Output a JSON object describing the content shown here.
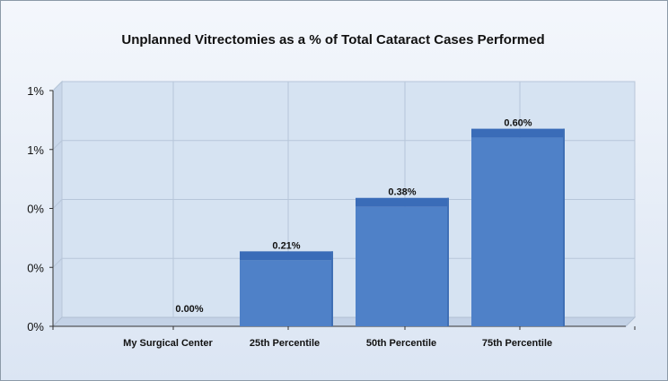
{
  "chart_data": {
    "type": "bar",
    "title": "Unplanned Vitrectomies as a % of Total Cataract Cases Performed",
    "categories": [
      "My Surgical Center",
      "25th Percentile",
      "50th Percentile",
      "75th Percentile"
    ],
    "values": [
      0.0,
      0.21,
      0.38,
      0.6
    ],
    "value_labels": [
      "0.00%",
      "0.21%",
      "0.38%",
      "0.60%"
    ],
    "y_tick_labels": [
      "0%",
      "0%",
      "0%",
      "1%",
      "1%"
    ],
    "ylim": [
      0,
      0.75
    ],
    "xlabel": "",
    "ylabel": "",
    "grid": true,
    "bar_color": "#4f81c8",
    "bar_top_color": "#3a6cb8"
  }
}
